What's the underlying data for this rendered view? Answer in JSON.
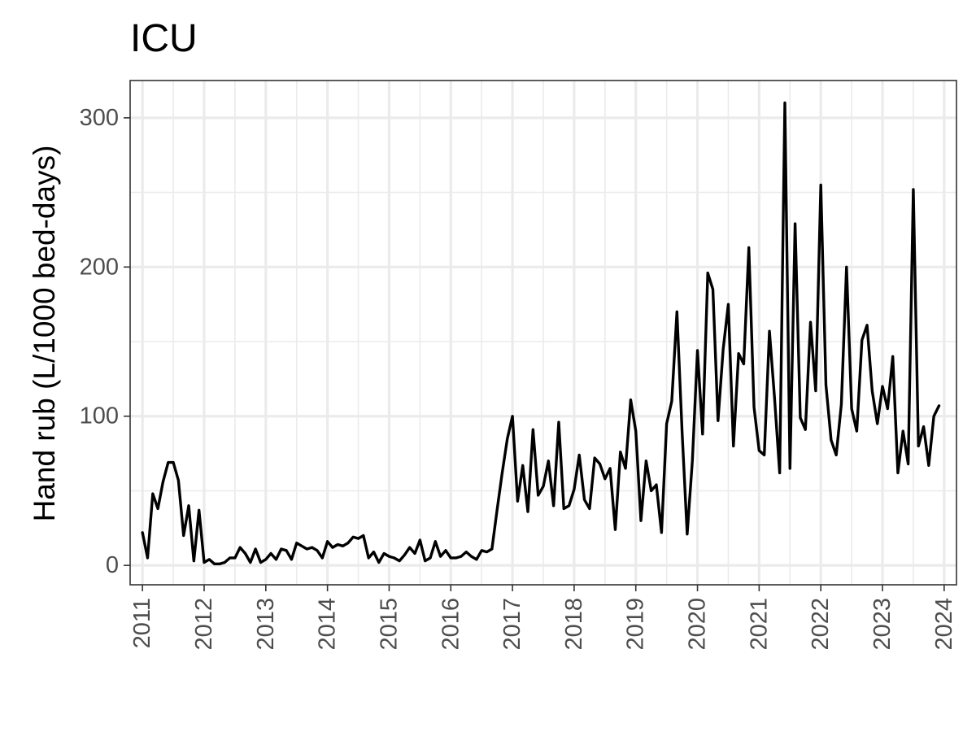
{
  "chart_data": {
    "type": "line",
    "title": "ICU",
    "xlabel": "",
    "ylabel": "Hand rub (L/1000 bed-days)",
    "xlim": [
      2010.8,
      2024.2
    ],
    "ylim": [
      -13,
      325
    ],
    "x_ticks": [
      2011,
      2012,
      2013,
      2014,
      2015,
      2016,
      2017,
      2018,
      2019,
      2020,
      2021,
      2022,
      2023,
      2024
    ],
    "x_tick_labels": [
      "2011",
      "2012",
      "2013",
      "2014",
      "2015",
      "2016",
      "2017",
      "2018",
      "2019",
      "2020",
      "2021",
      "2022",
      "2023",
      "2024"
    ],
    "y_ticks": [
      0,
      100,
      200,
      300
    ],
    "y_tick_labels": [
      "0",
      "100",
      "200",
      "300"
    ],
    "grid": true,
    "legend": "none",
    "colors": {
      "line": "#000000",
      "grid": "#ebebeb",
      "border": "#333333",
      "tick_text": "#4d4d4d"
    },
    "series": [
      {
        "x": [
          2011.0,
          2011.083,
          2011.167,
          2011.25,
          2011.333,
          2011.417,
          2011.5,
          2011.583,
          2011.667,
          2011.75,
          2011.833,
          2011.917,
          2012.0,
          2012.083,
          2012.167,
          2012.25,
          2012.333,
          2012.417,
          2012.5,
          2012.583,
          2012.667,
          2012.75,
          2012.833,
          2012.917,
          2013.0,
          2013.083,
          2013.167,
          2013.25,
          2013.333,
          2013.417,
          2013.5,
          2013.583,
          2013.667,
          2013.75,
          2013.833,
          2013.917,
          2014.0,
          2014.083,
          2014.167,
          2014.25,
          2014.333,
          2014.417,
          2014.5,
          2014.583,
          2014.667,
          2014.75,
          2014.833,
          2014.917,
          2015.0,
          2015.083,
          2015.167,
          2015.25,
          2015.333,
          2015.417,
          2015.5,
          2015.583,
          2015.667,
          2015.75,
          2015.833,
          2015.917,
          2016.0,
          2016.083,
          2016.167,
          2016.25,
          2016.333,
          2016.417,
          2016.5,
          2016.583,
          2016.667,
          2016.75,
          2016.833,
          2016.917,
          2017.0,
          2017.083,
          2017.167,
          2017.25,
          2017.333,
          2017.417,
          2017.5,
          2017.583,
          2017.667,
          2017.75,
          2017.833,
          2017.917,
          2018.0,
          2018.083,
          2018.167,
          2018.25,
          2018.333,
          2018.417,
          2018.5,
          2018.583,
          2018.667,
          2018.75,
          2018.833,
          2018.917,
          2019.0,
          2019.083,
          2019.167,
          2019.25,
          2019.333,
          2019.417,
          2019.5,
          2019.583,
          2019.667,
          2019.75,
          2019.833,
          2019.917,
          2020.0,
          2020.083,
          2020.167,
          2020.25,
          2020.333,
          2020.417,
          2020.5,
          2020.583,
          2020.667,
          2020.75,
          2020.833,
          2020.917,
          2021.0,
          2021.083,
          2021.167,
          2021.25,
          2021.333,
          2021.417,
          2021.5,
          2021.583,
          2021.667,
          2021.75,
          2021.833,
          2021.917,
          2022.0,
          2022.083,
          2022.167,
          2022.25,
          2022.333,
          2022.417,
          2022.5,
          2022.583,
          2022.667,
          2022.75,
          2022.833,
          2022.917,
          2023.0,
          2023.083,
          2023.167,
          2023.25,
          2023.333,
          2023.417,
          2023.5,
          2023.583,
          2023.667,
          2023.75,
          2023.833,
          2023.917
        ],
        "y": [
          22,
          5,
          48,
          38,
          56,
          69,
          69,
          57,
          20,
          40,
          3,
          37,
          2,
          4,
          1,
          1,
          2,
          5,
          5,
          12,
          8,
          2,
          11,
          2,
          4,
          8,
          4,
          11,
          10,
          4,
          15,
          13,
          11,
          12,
          10,
          5,
          16,
          12,
          14,
          13,
          15,
          19,
          18,
          20,
          5,
          9,
          2,
          8,
          6,
          5,
          3,
          7,
          12,
          8,
          17,
          3,
          5,
          16,
          6,
          10,
          5,
          5,
          6,
          9,
          6,
          4,
          10,
          9,
          11,
          37,
          62,
          85,
          100,
          43,
          67,
          36,
          91,
          47,
          53,
          70,
          40,
          96,
          38,
          40,
          51,
          74,
          44,
          38,
          72,
          68,
          58,
          65,
          24,
          76,
          65,
          111,
          90,
          30,
          70,
          50,
          54,
          22,
          95,
          110,
          170,
          90,
          21,
          70,
          144,
          88,
          196,
          185,
          97,
          145,
          175,
          80,
          142,
          135,
          213,
          106,
          77,
          74,
          157,
          112,
          62,
          310,
          65,
          229,
          99,
          91,
          163,
          117,
          255,
          121,
          84,
          74,
          108,
          200,
          105,
          90,
          151,
          161,
          117,
          95,
          120,
          105,
          140,
          62,
          90,
          68,
          252,
          80,
          93,
          67,
          100,
          107
        ]
      }
    ]
  }
}
